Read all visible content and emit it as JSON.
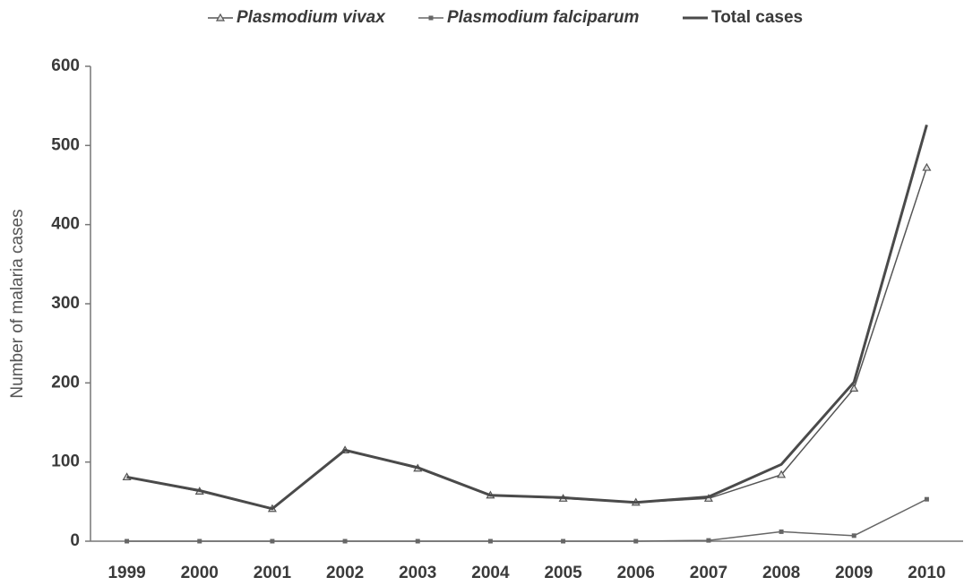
{
  "chart_data": {
    "type": "line",
    "categories": [
      "1999",
      "2000",
      "2001",
      "2002",
      "2003",
      "2004",
      "2005",
      "2006",
      "2007",
      "2008",
      "2009",
      "2010"
    ],
    "y_label": "Number of malaria cases",
    "series": [
      {
        "name": "Plasmodium vivax",
        "color": "#555555",
        "marker": "triangle",
        "line_width": 1.5,
        "italic": true,
        "values": [
          81,
          63,
          41,
          115,
          92,
          58,
          54,
          49,
          54,
          84,
          193,
          472
        ]
      },
      {
        "name": "Plasmodium falciparum",
        "color": "#666666",
        "marker": "square",
        "line_width": 1.5,
        "italic": true,
        "values": [
          0,
          0,
          0,
          0,
          0,
          0,
          0,
          0,
          1,
          12,
          7,
          53
        ]
      },
      {
        "name": "Total cases",
        "color": "#4a4a4a",
        "marker": "none",
        "line_width": 3,
        "italic": false,
        "values": [
          81,
          64,
          41,
          115,
          93,
          58,
          55,
          49,
          56,
          97,
          201,
          526
        ]
      }
    ],
    "ylim": [
      0,
      600
    ],
    "yticks": [
      0,
      100,
      200,
      300,
      400,
      500,
      600
    ],
    "grid": false,
    "legend": "top"
  }
}
